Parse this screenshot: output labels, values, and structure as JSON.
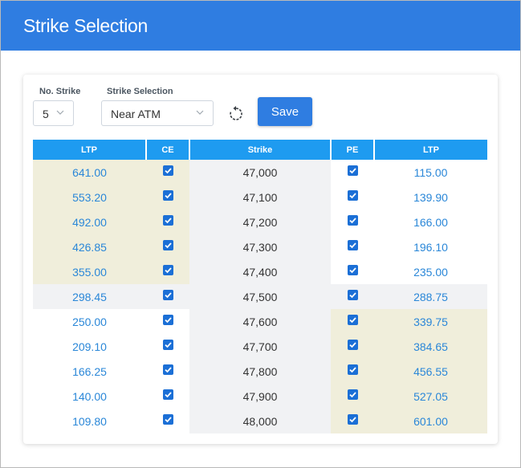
{
  "title": "Strike Selection",
  "controls": {
    "no_strike_label": "No. Strike",
    "no_strike_value": "5",
    "strike_selection_label": "Strike Selection",
    "strike_selection_value": "Near ATM",
    "save_label": "Save"
  },
  "table": {
    "headers": [
      "LTP",
      "CE",
      "Strike",
      "PE",
      "LTP"
    ],
    "rows": [
      {
        "ce_ltp": "641.00",
        "ce_checked": true,
        "strike": "47,000",
        "pe_checked": true,
        "pe_ltp": "115.00",
        "ce_itm": true,
        "pe_itm": false,
        "atm": false
      },
      {
        "ce_ltp": "553.20",
        "ce_checked": true,
        "strike": "47,100",
        "pe_checked": true,
        "pe_ltp": "139.90",
        "ce_itm": true,
        "pe_itm": false,
        "atm": false
      },
      {
        "ce_ltp": "492.00",
        "ce_checked": true,
        "strike": "47,200",
        "pe_checked": true,
        "pe_ltp": "166.00",
        "ce_itm": true,
        "pe_itm": false,
        "atm": false
      },
      {
        "ce_ltp": "426.85",
        "ce_checked": true,
        "strike": "47,300",
        "pe_checked": true,
        "pe_ltp": "196.10",
        "ce_itm": true,
        "pe_itm": false,
        "atm": false
      },
      {
        "ce_ltp": "355.00",
        "ce_checked": true,
        "strike": "47,400",
        "pe_checked": true,
        "pe_ltp": "235.00",
        "ce_itm": true,
        "pe_itm": false,
        "atm": false
      },
      {
        "ce_ltp": "298.45",
        "ce_checked": true,
        "strike": "47,500",
        "pe_checked": true,
        "pe_ltp": "288.75",
        "ce_itm": false,
        "pe_itm": false,
        "atm": true
      },
      {
        "ce_ltp": "250.00",
        "ce_checked": true,
        "strike": "47,600",
        "pe_checked": true,
        "pe_ltp": "339.75",
        "ce_itm": false,
        "pe_itm": true,
        "atm": false
      },
      {
        "ce_ltp": "209.10",
        "ce_checked": true,
        "strike": "47,700",
        "pe_checked": true,
        "pe_ltp": "384.65",
        "ce_itm": false,
        "pe_itm": true,
        "atm": false
      },
      {
        "ce_ltp": "166.25",
        "ce_checked": true,
        "strike": "47,800",
        "pe_checked": true,
        "pe_ltp": "456.55",
        "ce_itm": false,
        "pe_itm": true,
        "atm": false
      },
      {
        "ce_ltp": "140.00",
        "ce_checked": true,
        "strike": "47,900",
        "pe_checked": true,
        "pe_ltp": "527.05",
        "ce_itm": false,
        "pe_itm": true,
        "atm": false
      },
      {
        "ce_ltp": "109.80",
        "ce_checked": true,
        "strike": "48,000",
        "pe_checked": true,
        "pe_ltp": "601.00",
        "ce_itm": false,
        "pe_itm": true,
        "atm": false
      }
    ]
  },
  "colors": {
    "header_blue": "#2f7de1",
    "table_header": "#1e9bf0",
    "itm_shade": "#f0eedb",
    "atm_shade": "#f1f2f4",
    "ltp_text": "#2a87d8"
  },
  "icons": {
    "reset": "refresh-icon",
    "dropdown": "chevron-down-icon",
    "checkbox": "checkbox-checked-icon"
  }
}
